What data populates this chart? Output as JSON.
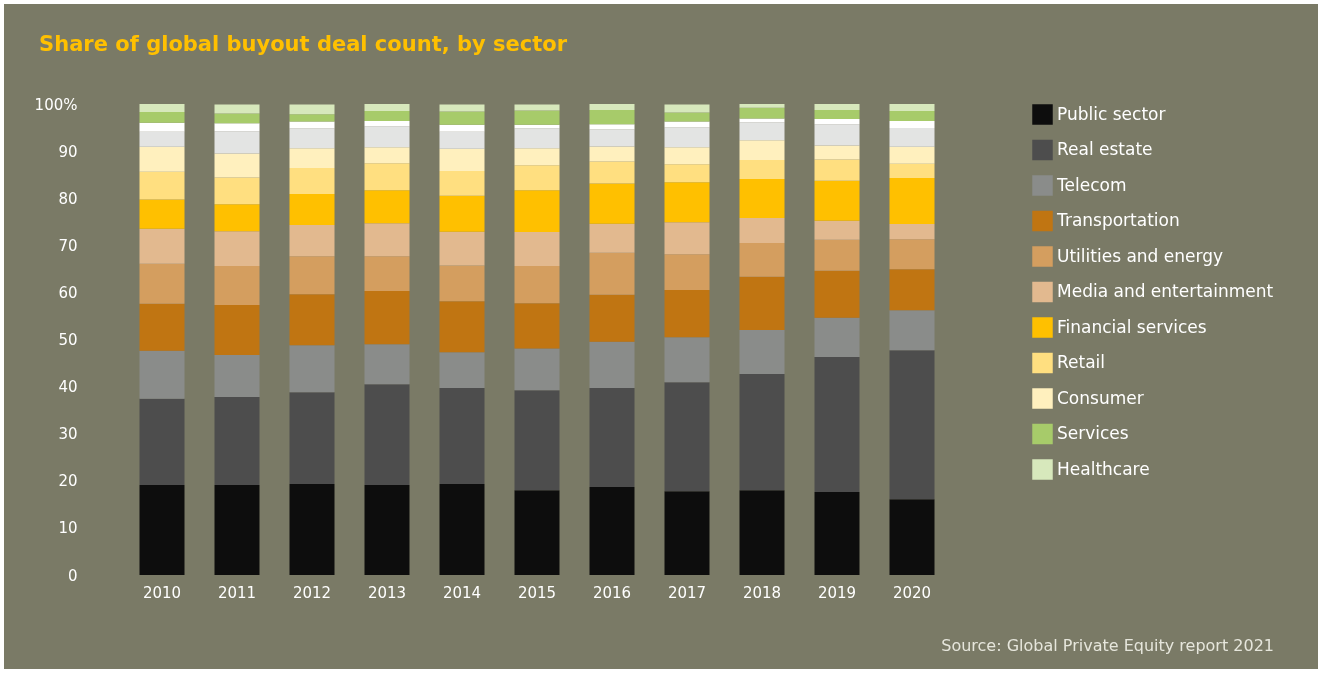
{
  "chart_data": {
    "type": "bar",
    "stacked": true,
    "title": "Share of global buyout deal count, by sector",
    "categories": [
      "2010",
      "2011",
      "2012",
      "2013",
      "2014",
      "2015",
      "2016",
      "2017",
      "2018",
      "2019",
      "2020"
    ],
    "ylim": [
      0,
      100
    ],
    "yticks": [
      0,
      10,
      20,
      30,
      40,
      50,
      60,
      70,
      80,
      90,
      {
        "value": 100,
        "label": "100%"
      }
    ],
    "legend": "right",
    "annotations": [
      "Source: Global Private Equity report 2021"
    ],
    "series": [
      {
        "name": "Public sector",
        "color": "#0d0d0d",
        "values": [
          19.1,
          19.1,
          19.3,
          19.1,
          19.3,
          18.0,
          18.7,
          17.8,
          18.0,
          17.6,
          16.1
        ]
      },
      {
        "name": "Real estate",
        "color": "#4d4d4d",
        "values": [
          18.3,
          18.7,
          19.5,
          21.4,
          20.4,
          21.2,
          21.0,
          23.1,
          24.7,
          28.7,
          31.6
        ]
      },
      {
        "name": "Telecom",
        "color": "#8a8c8a",
        "values": [
          10.2,
          8.9,
          10.0,
          8.5,
          7.6,
          8.9,
          9.8,
          9.6,
          9.3,
          8.3,
          8.5
        ]
      },
      {
        "name": "Transportation",
        "color": "#c07512",
        "values": [
          10.0,
          10.6,
          10.8,
          11.3,
          10.8,
          9.6,
          10.0,
          10.0,
          11.3,
          10.0,
          8.7
        ]
      },
      {
        "name": "Utilities and energy",
        "color": "#d49e5f",
        "values": [
          8.5,
          8.3,
          8.1,
          7.4,
          7.6,
          7.9,
          8.9,
          7.6,
          7.2,
          6.6,
          6.4
        ]
      },
      {
        "name": "Media and entertainment",
        "color": "#e2b98f",
        "values": [
          7.4,
          7.4,
          6.6,
          7.0,
          7.2,
          7.2,
          6.2,
          6.8,
          5.3,
          4.0,
          3.2
        ]
      },
      {
        "name": "Financial services",
        "color": "#ffc000",
        "values": [
          6.2,
          5.7,
          6.6,
          7.0,
          7.6,
          8.9,
          8.5,
          8.5,
          8.3,
          8.5,
          9.8
        ]
      },
      {
        "name": "Retail",
        "color": "#ffdf80",
        "values": [
          5.9,
          5.7,
          5.5,
          5.7,
          5.3,
          5.3,
          4.7,
          3.8,
          4.0,
          4.5,
          3.0
        ]
      },
      {
        "name": "Consumer",
        "color": "#fff0be",
        "values": [
          5.3,
          5.1,
          4.2,
          3.4,
          4.7,
          3.6,
          3.2,
          3.6,
          4.2,
          3.0,
          3.6
        ]
      },
      {
        "color": "#e3e4e3",
        "values": [
          3.2,
          4.7,
          4.2,
          4.5,
          3.6,
          4.2,
          3.6,
          4.2,
          3.8,
          4.5,
          4.0
        ]
      },
      {
        "color": "#ffffff",
        "values": [
          1.9,
          1.7,
          1.5,
          1.1,
          1.5,
          0.8,
          1.1,
          1.3,
          0.8,
          1.1,
          1.5
        ]
      },
      {
        "name": "Services",
        "color": "#a7cb6a",
        "values": [
          2.3,
          2.1,
          1.5,
          2.1,
          2.8,
          3.0,
          3.0,
          1.9,
          2.3,
          1.9,
          2.1
        ]
      },
      {
        "name": "Healthcare",
        "color": "#d7e8bc",
        "values": [
          1.7,
          1.9,
          2.1,
          1.5,
          1.5,
          1.3,
          1.3,
          1.7,
          0.8,
          1.3,
          1.5
        ]
      }
    ]
  }
}
